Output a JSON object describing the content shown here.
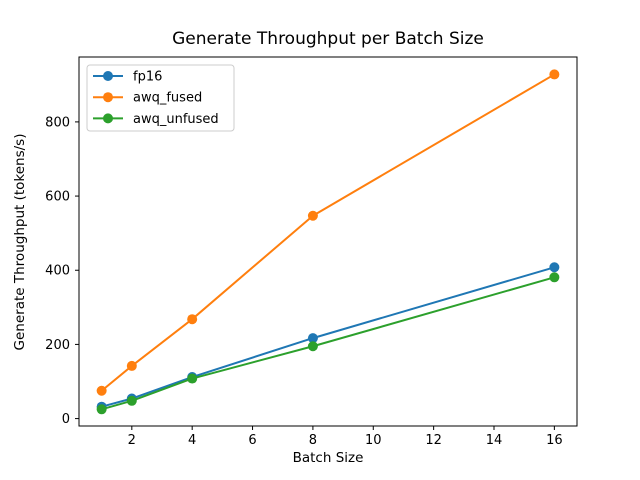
{
  "chart_data": {
    "type": "line",
    "title": "Generate Throughput per Batch Size",
    "xlabel": "Batch Size",
    "ylabel": "Generate Throughput (tokens/s)",
    "x": [
      1,
      2,
      4,
      8,
      16
    ],
    "series": [
      {
        "name": "fp16",
        "color": "#1f77b4",
        "values": [
          32,
          54,
          112,
          217,
          408
        ]
      },
      {
        "name": "awq_fused",
        "color": "#ff7f0e",
        "values": [
          75,
          142,
          268,
          547,
          928
        ]
      },
      {
        "name": "awq_unfused",
        "color": "#2ca02c",
        "values": [
          25,
          48,
          108,
          195,
          381
        ]
      }
    ],
    "xlim": [
      0.25,
      16.75
    ],
    "ylim": [
      -20,
      975
    ],
    "xticks": [
      2,
      4,
      6,
      8,
      10,
      12,
      14,
      16
    ],
    "yticks": [
      0,
      200,
      400,
      600,
      800
    ],
    "grid": false,
    "marker": "o",
    "legend_position": "upper left",
    "background_color": "#ffffff",
    "text_color": "#000000"
  }
}
